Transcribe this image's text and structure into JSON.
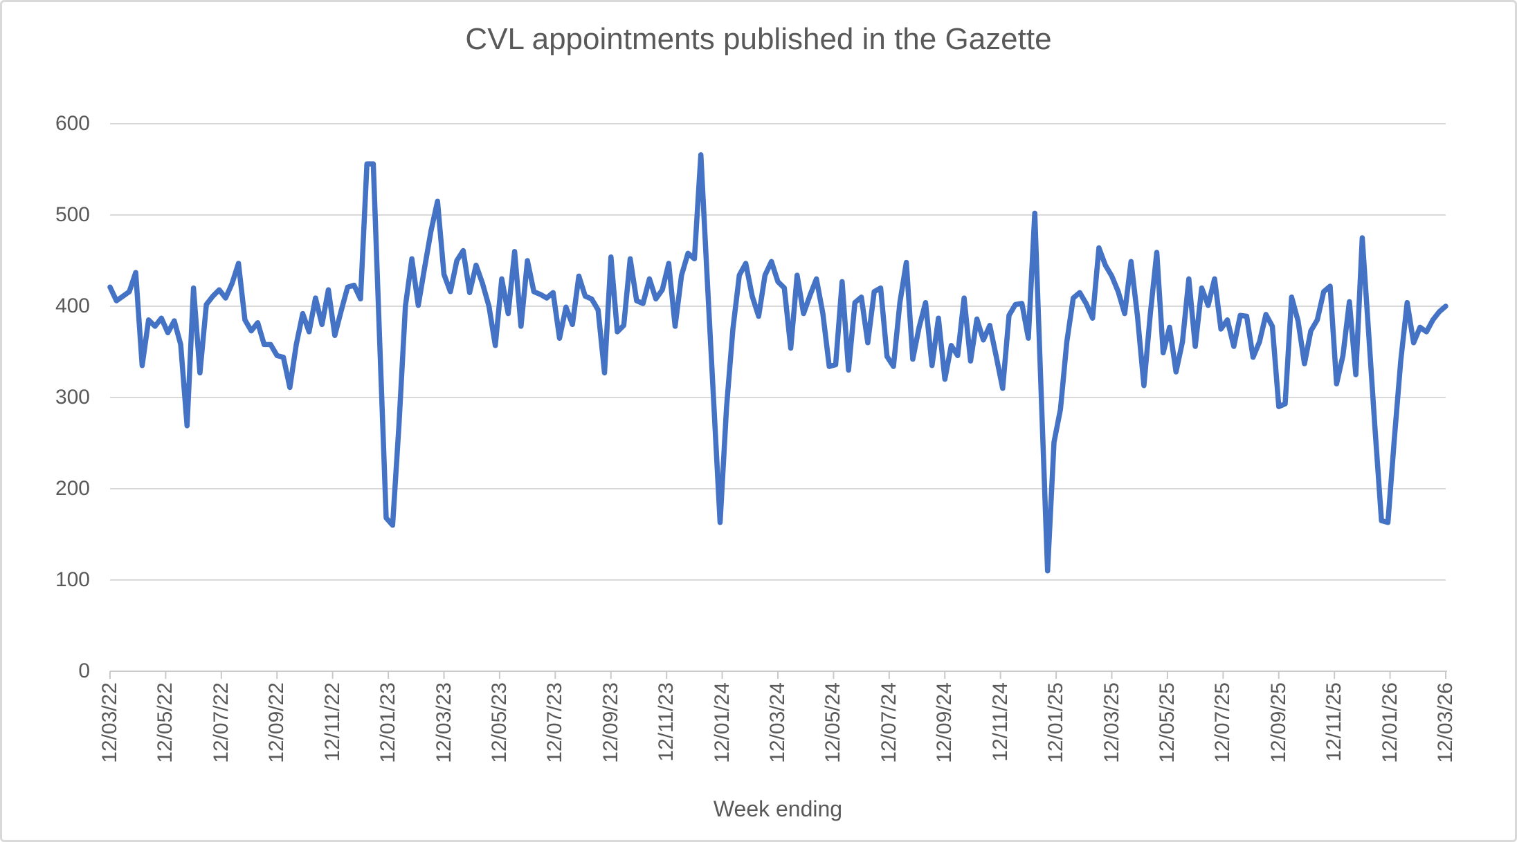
{
  "title": "CVL appointments published in the Gazette",
  "x_axis_title": "Week ending",
  "colors": {
    "line": "#4472C4",
    "gridline": "#d9d9d9",
    "axis_line": "#c9c9c9",
    "tick_mark": "#c9c9c9",
    "text": "#595959",
    "background": "#ffffff",
    "frame_border": "#d9d9d9"
  },
  "chart_data": {
    "type": "line",
    "title": "CVL appointments published in the Gazette",
    "xlabel": "Week ending",
    "ylabel": "",
    "ylim": [
      0,
      600
    ],
    "grid": true,
    "legend": "none",
    "series_name": "CVL appointments published in the Gazette (weekly)",
    "frequency": "weekly",
    "first_week_ending": "12/03/22",
    "last_week_ending": "12/03/26",
    "y_ticks": [
      0,
      100,
      200,
      300,
      400,
      500,
      600
    ],
    "x_tick_labels": [
      "12/03/22",
      "12/05/22",
      "12/07/22",
      "12/09/22",
      "12/11/22",
      "12/01/23",
      "12/03/23",
      "12/05/23",
      "12/07/23",
      "12/09/23",
      "12/11/23",
      "12/01/24",
      "12/03/24",
      "12/05/24",
      "12/07/24",
      "12/09/24",
      "12/11/24",
      "12/01/25",
      "12/03/25",
      "12/05/25",
      "12/07/25",
      "12/09/25",
      "12/11/25",
      "12/01/26",
      "12/03/26"
    ],
    "values": [
      421,
      406,
      411,
      416,
      437,
      335,
      385,
      378,
      387,
      371,
      384,
      358,
      269,
      420,
      327,
      402,
      411,
      418,
      409,
      425,
      447,
      385,
      373,
      382,
      358,
      358,
      346,
      344,
      311,
      358,
      392,
      372,
      409,
      380,
      418,
      368,
      395,
      421,
      423,
      408,
      556,
      556,
      360,
      168,
      160,
      270,
      400,
      452,
      401,
      443,
      483,
      515,
      435,
      416,
      450,
      461,
      415,
      445,
      425,
      400,
      357,
      430,
      392,
      460,
      378,
      450,
      416,
      413,
      409,
      415,
      365,
      399,
      380,
      433,
      411,
      408,
      396,
      327,
      454,
      372,
      379,
      452,
      406,
      403,
      430,
      408,
      418,
      447,
      378,
      434,
      458,
      452,
      566,
      430,
      296,
      163,
      289,
      375,
      434,
      447,
      411,
      389,
      434,
      449,
      427,
      420,
      354,
      434,
      392,
      412,
      430,
      392,
      334,
      336,
      427,
      330,
      404,
      410,
      360,
      416,
      420,
      345,
      334,
      404,
      448,
      342,
      377,
      404,
      335,
      387,
      320,
      357,
      346,
      409,
      340,
      386,
      363,
      379,
      345,
      310,
      390,
      402,
      403,
      365,
      502,
      306,
      110,
      251,
      287,
      361,
      409,
      415,
      403,
      387,
      464,
      445,
      433,
      416,
      392,
      449,
      389,
      313,
      392,
      459,
      349,
      377,
      328,
      361,
      430,
      356,
      420,
      401,
      430,
      375,
      385,
      356,
      390,
      389,
      344,
      361,
      391,
      378,
      290,
      293,
      410,
      384,
      337,
      373,
      385,
      416,
      422,
      315,
      346,
      405,
      325,
      475,
      370,
      265,
      165,
      163,
      255,
      340,
      404,
      360,
      377,
      372,
      385,
      394,
      400
    ]
  }
}
